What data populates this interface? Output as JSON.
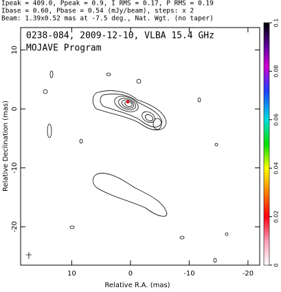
{
  "chart_data": {
    "type": "contour",
    "header": [
      "Ipeak = 409.0, Ppeak = 0.9, I RMS = 0.17, P RMS = 0.19",
      "Ibase = 0.60, Pbase = 0.54 (mJy/beam), steps: x 2",
      "Beam: 1.39x0.52 mas at -7.5 deg., Nat. Wgt. (no taper)"
    ],
    "title": "0238-084, 2009-12-10, VLBA 15.4 GHz",
    "subtitle": "MOJAVE Program",
    "x_label": "Relative R.A. (mas)",
    "y_label": "Relative Declination (mas)",
    "xlim": [
      18.7,
      -22
    ],
    "xticks": [
      10,
      0,
      -10,
      -20
    ],
    "ylim": [
      -26.5,
      13.8
    ],
    "yticks": [
      10,
      0,
      -10,
      -20
    ],
    "colorbar": {
      "lim": [
        0,
        0.1
      ],
      "ticks": [
        0,
        0.02,
        0.04,
        0.06,
        0.08,
        0.1
      ]
    }
  }
}
